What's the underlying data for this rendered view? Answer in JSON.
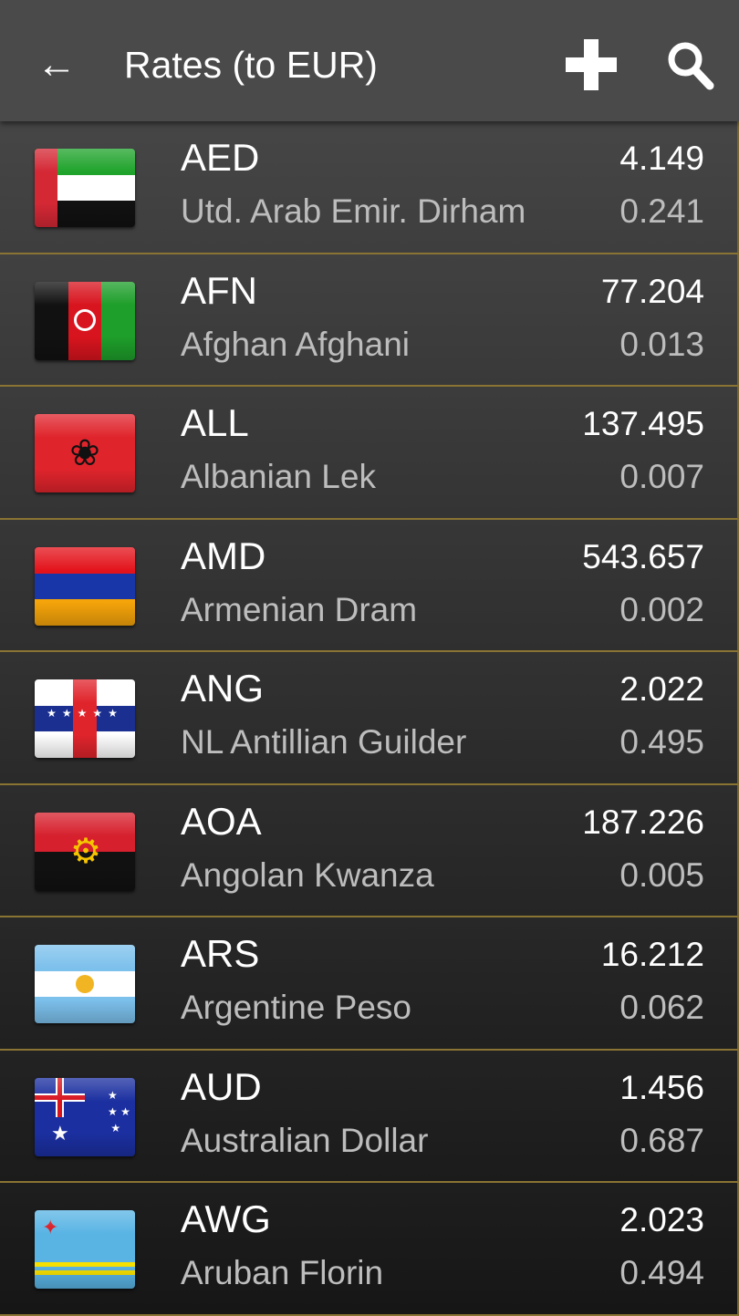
{
  "header": {
    "title": "Rates (to EUR)",
    "back_icon": "arrow-left-icon",
    "add_icon": "plus-icon",
    "search_icon": "search-icon"
  },
  "rows": [
    {
      "code": "AED",
      "name": "Utd. Arab Emir. Dirham",
      "rate": "4.149",
      "inverse": "0.241",
      "flag": "uae-flag"
    },
    {
      "code": "AFN",
      "name": "Afghan Afghani",
      "rate": "77.204",
      "inverse": "0.013",
      "flag": "afghanistan-flag"
    },
    {
      "code": "ALL",
      "name": "Albanian Lek",
      "rate": "137.495",
      "inverse": "0.007",
      "flag": "albania-flag"
    },
    {
      "code": "AMD",
      "name": "Armenian Dram",
      "rate": "543.657",
      "inverse": "0.002",
      "flag": "armenia-flag"
    },
    {
      "code": "ANG",
      "name": "NL Antillian Guilder",
      "rate": "2.022",
      "inverse": "0.495",
      "flag": "netherlands-antilles-flag"
    },
    {
      "code": "AOA",
      "name": "Angolan Kwanza",
      "rate": "187.226",
      "inverse": "0.005",
      "flag": "angola-flag"
    },
    {
      "code": "ARS",
      "name": "Argentine Peso",
      "rate": "16.212",
      "inverse": "0.062",
      "flag": "argentina-flag"
    },
    {
      "code": "AUD",
      "name": "Australian Dollar",
      "rate": "1.456",
      "inverse": "0.687",
      "flag": "australia-flag"
    },
    {
      "code": "AWG",
      "name": "Aruban Florin",
      "rate": "2.023",
      "inverse": "0.494",
      "flag": "aruba-flag"
    }
  ],
  "colors": {
    "appbar": "#4a4a4a",
    "separator": "#8a7433"
  }
}
